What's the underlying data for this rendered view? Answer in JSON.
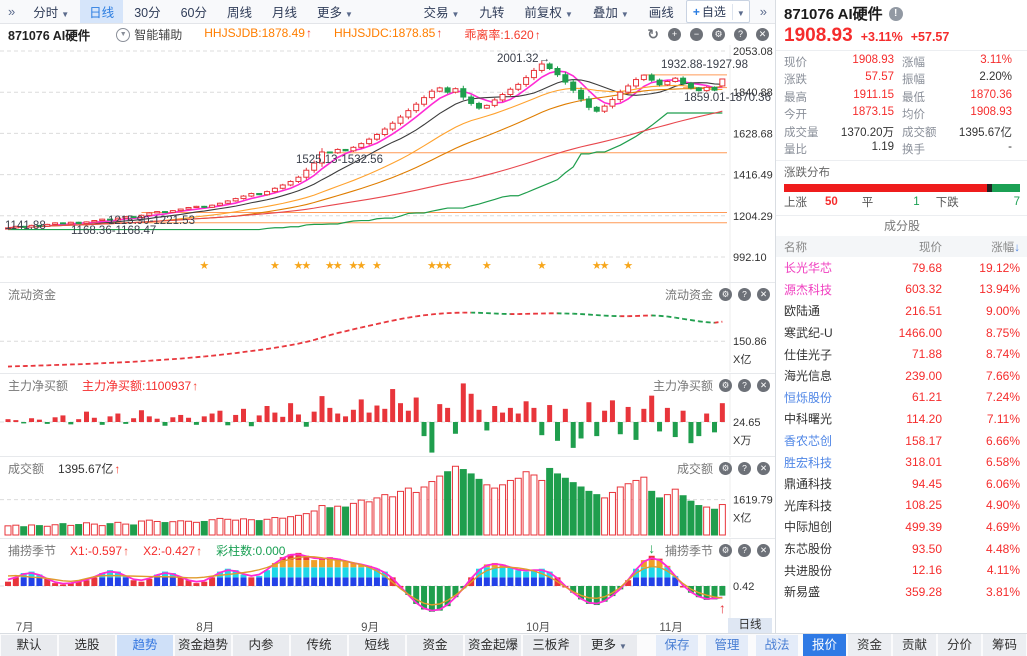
{
  "top_toolbar": {
    "collapse_icon": "»",
    "period_tabs": [
      {
        "label": "分时",
        "caret": true
      },
      {
        "label": "日线",
        "active": true
      },
      {
        "label": "30分"
      },
      {
        "label": "60分"
      },
      {
        "label": "周线"
      },
      {
        "label": "月线"
      },
      {
        "label": "更多",
        "caret": true
      }
    ],
    "tool_buttons": [
      {
        "label": "交易",
        "caret": true
      },
      {
        "label": "九转"
      },
      {
        "label": "前复权",
        "caret": true
      },
      {
        "label": "叠加",
        "caret": true
      },
      {
        "label": "画线"
      },
      {
        "label": "自选",
        "plus": "+",
        "caret": true,
        "boxed": true
      }
    ],
    "more_icon": "»"
  },
  "chart_header": {
    "symbol": "871076 AI硬件",
    "assist_label": "智能辅助",
    "indicators": [
      {
        "label": "HHJSJDB:1878.49",
        "color": "#ff7e00",
        "arrow": "↑"
      },
      {
        "label": "HHJSJDC:1878.85",
        "color": "#ff7e00",
        "arrow": "↑"
      },
      {
        "label": "乖离率:1.620",
        "color": "#f43b2c",
        "arrow": "↑"
      }
    ],
    "window_icons": [
      "refresh",
      "plus",
      "minus",
      "gear",
      "help",
      "close"
    ]
  },
  "chart_data": {
    "type": "candlestick",
    "title": "871076 AI硬件 日线",
    "closes": [
      1142,
      1150,
      1146,
      1155,
      1151,
      1160,
      1168,
      1163,
      1171,
      1165,
      1173,
      1180,
      1187,
      1183,
      1192,
      1200,
      1196,
      1207,
      1219,
      1226,
      1222,
      1231,
      1239,
      1247,
      1253,
      1248,
      1259,
      1269,
      1281,
      1293,
      1306,
      1319,
      1313,
      1329,
      1346,
      1363,
      1381,
      1403,
      1439,
      1476,
      1533,
      1529,
      1546,
      1539,
      1557,
      1576,
      1599,
      1623,
      1651,
      1681,
      1713,
      1746,
      1779,
      1813,
      1846,
      1863,
      1841,
      1859,
      1816,
      1783,
      1759,
      1773,
      1801,
      1829,
      1856,
      1881,
      1916,
      1953,
      1986,
      1963,
      1931,
      1893,
      1851,
      1806,
      1763,
      1743,
      1769,
      1803,
      1841,
      1873,
      1906,
      1929,
      1903,
      1879,
      1896,
      1913,
      1886,
      1863,
      1849,
      1866,
      1851.36,
      1908.93
    ],
    "open_override": {
      "91": 1873.15
    },
    "high_override": {
      "68": 2001.32,
      "81": 1932.88,
      "91": 1911.15
    },
    "low_override": {
      "91": 1870.36
    },
    "y_axis_labels": [
      "2053.08",
      "1840.88",
      "1628.68",
      "1416.49",
      "1204.29",
      "992.10"
    ],
    "y_range": [
      2053.08,
      992.1
    ],
    "annotations": [
      {
        "text": "2001.32→",
        "x": 497,
        "y": 17
      },
      {
        "text": "1932.88-1927.98",
        "x": 661,
        "y": 23
      },
      {
        "text": "1859.01-1870.36",
        "x": 684,
        "y": 56
      },
      {
        "text": "1525.13-1532.56",
        "x": 296,
        "y": 118
      },
      {
        "text": "1215.90-1221.53",
        "x": 108,
        "y": 179
      },
      {
        "text": "1168.36-1168.47",
        "x": 71,
        "y": 189
      },
      {
        "text": "1141.88",
        "x": 5,
        "y": 184
      }
    ],
    "gap_lines": [
      {
        "price": 1168.4,
        "from": 10
      },
      {
        "price": 1221.5,
        "from": 17
      },
      {
        "price": 1528.9,
        "from": 40
      },
      {
        "price": 1864.7,
        "from": 86
      },
      {
        "price": 1930.4,
        "from": 81
      }
    ],
    "star_indices": [
      25,
      34,
      37,
      38,
      41,
      42,
      44,
      45,
      47,
      54,
      55,
      56,
      61,
      68,
      75,
      76,
      79
    ],
    "months": [
      {
        "label": "7月",
        "i": 2
      },
      {
        "label": "8月",
        "i": 25
      },
      {
        "label": "9月",
        "i": 46
      },
      {
        "label": "10月",
        "i": 67
      },
      {
        "label": "11月",
        "i": 84
      }
    ]
  },
  "panels": {
    "liquid": {
      "title": "流动资金",
      "axis_label": "150.86",
      "axis_value": 150.86,
      "unit": "X亿",
      "ymax": 400,
      "values": [
        8,
        10,
        11,
        12,
        14,
        15,
        17,
        18,
        20,
        21,
        23,
        25,
        27,
        29,
        31,
        33,
        35,
        38,
        41,
        44,
        47,
        50,
        53,
        57,
        61,
        65,
        69,
        74,
        79,
        84,
        90,
        96,
        101,
        107,
        114,
        121,
        129,
        137,
        147,
        158,
        172,
        185,
        197,
        207,
        218,
        228,
        238,
        248,
        258,
        267,
        276,
        284,
        291,
        297,
        302,
        306,
        309,
        311,
        312,
        312,
        311,
        309,
        307,
        305,
        304,
        304,
        305,
        306,
        307,
        308,
        308,
        307,
        306,
        304,
        301,
        298,
        295,
        293,
        292,
        292,
        293,
        295,
        296,
        294,
        290,
        284,
        277,
        270,
        263,
        258,
        255,
        261
      ]
    },
    "main_buy": {
      "title": "主力净买额",
      "value_label": "主力净买额:1100937",
      "value_arrow": "↑",
      "axis_label": "24.65",
      "unit": "X万",
      "values": [
        6,
        4,
        -3,
        8,
        5,
        -4,
        10,
        14,
        -5,
        6,
        22,
        9,
        -6,
        12,
        18,
        -4,
        8,
        25,
        12,
        7,
        -8,
        10,
        15,
        9,
        -6,
        12,
        18,
        24,
        -7,
        15,
        28,
        -9,
        14,
        34,
        20,
        11,
        40,
        16,
        -10,
        22,
        55,
        30,
        18,
        12,
        26,
        48,
        20,
        35,
        28,
        70,
        40,
        24,
        52,
        -30,
        -65,
        38,
        30,
        -25,
        82,
        60,
        26,
        -18,
        34,
        20,
        30,
        18,
        44,
        30,
        -28,
        36,
        -40,
        28,
        -55,
        -35,
        42,
        -30,
        24,
        46,
        -26,
        32,
        -38,
        28,
        56,
        -20,
        30,
        -32,
        24,
        -45,
        -30,
        18,
        -22,
        40
      ]
    },
    "turnover": {
      "title": "成交额",
      "value_label": "1395.67亿",
      "value_arrow": "↑",
      "axis_label": "1619.79",
      "axis_value": 1619.79,
      "unit": "X亿",
      "ymax": 3300,
      "values": [
        420,
        450,
        380,
        460,
        430,
        400,
        470,
        520,
        440,
        480,
        560,
        500,
        430,
        520,
        580,
        500,
        460,
        640,
        680,
        620,
        570,
        610,
        650,
        630,
        580,
        620,
        700,
        760,
        720,
        680,
        740,
        700,
        660,
        720,
        800,
        770,
        840,
        900,
        980,
        1100,
        1350,
        1250,
        1320,
        1280,
        1450,
        1600,
        1520,
        1700,
        1850,
        1750,
        2000,
        2150,
        1950,
        2200,
        2450,
        2700,
        2900,
        3150,
        3000,
        2800,
        2550,
        2300,
        2150,
        2300,
        2500,
        2600,
        2900,
        2750,
        2500,
        3050,
        2800,
        2600,
        2400,
        2200,
        2000,
        1850,
        1700,
        1950,
        2200,
        2350,
        2500,
        2650,
        2000,
        1700,
        1850,
        2100,
        1800,
        1550,
        1350,
        1280,
        1180,
        1395.67
      ]
    },
    "fishing": {
      "title": "捕捞季节",
      "x1_label": "X1:-0.597",
      "x1_arrow": "↑",
      "x2_label": "X2:-0.427",
      "x2_arrow": "↑",
      "count_label": "彩柱数:0.000",
      "axis_label": "0.42",
      "sell_arrow_index": 82,
      "buy_arrow_index": 91,
      "values": [
        0.15,
        0.3,
        0.45,
        0.5,
        0.4,
        0.25,
        0.1,
        0.05,
        0.1,
        0.15,
        0.2,
        0.3,
        0.45,
        0.55,
        0.5,
        0.35,
        0.2,
        0.15,
        0.25,
        0.4,
        0.5,
        0.45,
        0.3,
        0.2,
        0.1,
        0.15,
        0.3,
        0.5,
        0.6,
        0.55,
        0.4,
        0.3,
        0.35,
        0.55,
        0.8,
        1.0,
        1.1,
        1.15,
        1.05,
        0.9,
        0.95,
        1.0,
        0.95,
        0.85,
        0.8,
        0.75,
        0.7,
        0.6,
        0.5,
        0.3,
        0.0,
        -0.4,
        -0.8,
        -1.05,
        -1.15,
        -1.1,
        -0.9,
        -0.5,
        -0.1,
        0.3,
        0.6,
        0.75,
        0.8,
        0.75,
        0.65,
        0.55,
        0.5,
        0.55,
        0.6,
        0.5,
        0.3,
        0.0,
        -0.3,
        -0.6,
        -0.8,
        -0.85,
        -0.7,
        -0.45,
        -0.15,
        0.2,
        0.6,
        0.9,
        1.05,
        0.95,
        0.7,
        0.35,
        0.0,
        -0.3,
        -0.5,
        -0.62,
        -0.6,
        -0.43
      ]
    }
  },
  "x_axis": {
    "period_label": "日线"
  },
  "quote_panel": {
    "title": "871076 AI硬件",
    "price": "1908.93",
    "change_pct": "+3.11%",
    "change_val": "+57.57",
    "stats": [
      {
        "label": "现价",
        "value": "1908.93",
        "c": "red"
      },
      {
        "label": "涨幅",
        "value": "3.11%",
        "c": "red"
      },
      {
        "label": "涨跌",
        "value": "57.57",
        "c": "red"
      },
      {
        "label": "振幅",
        "value": "2.20%",
        "c": "blk"
      },
      {
        "label": "最高",
        "value": "1911.15",
        "c": "red"
      },
      {
        "label": "最低",
        "value": "1870.36",
        "c": "red"
      },
      {
        "label": "今开",
        "value": "1873.15",
        "c": "red"
      },
      {
        "label": "均价",
        "value": "1908.93",
        "c": "red"
      },
      {
        "label": "成交量",
        "value": "1370.20万",
        "c": "blk"
      },
      {
        "label": "成交额",
        "value": "1395.67亿",
        "c": "blk"
      },
      {
        "label": "量比",
        "value": "1.19",
        "c": "blk"
      },
      {
        "label": "换手",
        "value": "-",
        "c": "blk"
      }
    ],
    "distribution": {
      "title": "涨跌分布",
      "up_label": "上涨",
      "up": "50",
      "flat_label": "平",
      "flat": "1",
      "down_label": "下跌",
      "down": "7",
      "bar_pcts": {
        "red": 86,
        "black": 2,
        "green": 12
      },
      "colors": {
        "red": "#ef1c1c",
        "black": "#222222",
        "green": "#1ba054"
      }
    },
    "components": {
      "title": "成分股",
      "headers": [
        "名称",
        "现价",
        "涨幅"
      ],
      "sort_arrow": "↓",
      "rows": [
        {
          "name": "长光华芯",
          "price": "79.68",
          "pct": "19.12%",
          "nc": "m"
        },
        {
          "name": "源杰科技",
          "price": "603.32",
          "pct": "13.94%",
          "nc": "m"
        },
        {
          "name": "欧陆通",
          "price": "216.51",
          "pct": "9.00%",
          "nc": "k"
        },
        {
          "name": "寒武纪-U",
          "price": "1466.00",
          "pct": "8.75%",
          "nc": "k"
        },
        {
          "name": "仕佳光子",
          "price": "71.88",
          "pct": "8.74%",
          "nc": "k"
        },
        {
          "name": "海光信息",
          "price": "239.00",
          "pct": "7.66%",
          "nc": "k"
        },
        {
          "name": "恒烁股份",
          "price": "61.21",
          "pct": "7.24%",
          "nc": "b"
        },
        {
          "name": "中科曙光",
          "price": "114.20",
          "pct": "7.11%",
          "nc": "k"
        },
        {
          "name": "香农芯创",
          "price": "158.17",
          "pct": "6.66%",
          "nc": "b"
        },
        {
          "name": "胜宏科技",
          "price": "318.01",
          "pct": "6.58%",
          "nc": "b"
        },
        {
          "name": "鼎通科技",
          "price": "94.45",
          "pct": "6.06%",
          "nc": "k"
        },
        {
          "name": "光库科技",
          "price": "108.25",
          "pct": "4.90%",
          "nc": "k"
        },
        {
          "name": "中际旭创",
          "price": "499.39",
          "pct": "4.69%",
          "nc": "k"
        },
        {
          "name": "东芯股份",
          "price": "93.50",
          "pct": "4.48%",
          "nc": "k"
        },
        {
          "name": "共进股份",
          "price": "12.16",
          "pct": "4.11%",
          "nc": "k"
        },
        {
          "name": "新易盛",
          "price": "359.28",
          "pct": "3.81%",
          "nc": "k"
        }
      ]
    },
    "tabs": [
      {
        "label": "报价",
        "active": true
      },
      {
        "label": "资金"
      },
      {
        "label": "贡献"
      },
      {
        "label": "分价"
      },
      {
        "label": "筹码"
      }
    ]
  },
  "bottom_bar": {
    "buttons": [
      {
        "label": "默认"
      },
      {
        "label": "选股"
      },
      {
        "label": "趋势",
        "active": true
      },
      {
        "label": "资金趋势"
      },
      {
        "label": "内参"
      },
      {
        "label": "传统"
      },
      {
        "label": "短线"
      },
      {
        "label": "资金"
      },
      {
        "label": "资金起爆"
      },
      {
        "label": "三板斧"
      },
      {
        "label": "更多",
        "caret": true
      }
    ],
    "action_buttons": [
      "保存",
      "管理",
      "战法"
    ]
  },
  "colors": {
    "up_red": "#e8353b",
    "down_green": "#1f9e4d",
    "accent_blue": "#2f7ae5",
    "text_red": "#f52c2c",
    "orange": "#ff7e00",
    "magenta": "#f040c0",
    "star_gold": "#f7a61b"
  }
}
